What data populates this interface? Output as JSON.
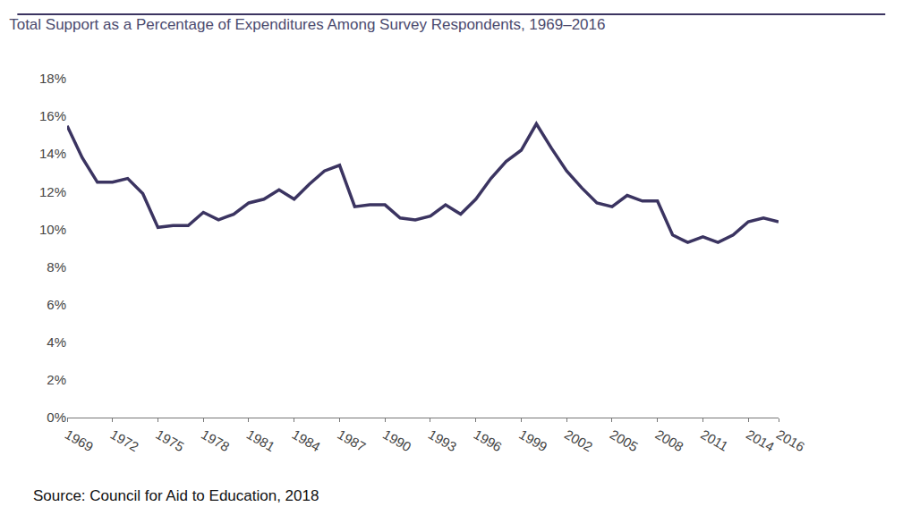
{
  "chart_data": {
    "type": "line",
    "title": "Total Support as a Percentage of Expenditures Among Survey Respondents, 1969–2016",
    "annotations": [
      {
        "text": "Source: Council for Aid to Education, 2018"
      }
    ],
    "x": [
      1969,
      1970,
      1971,
      1972,
      1973,
      1974,
      1975,
      1976,
      1977,
      1978,
      1979,
      1980,
      1981,
      1982,
      1983,
      1984,
      1985,
      1986,
      1987,
      1988,
      1989,
      1990,
      1991,
      1992,
      1993,
      1994,
      1995,
      1996,
      1997,
      1998,
      1999,
      2000,
      2001,
      2002,
      2003,
      2004,
      2005,
      2006,
      2007,
      2008,
      2009,
      2010,
      2011,
      2012,
      2013,
      2014,
      2015,
      2016
    ],
    "values": [
      15.5,
      13.8,
      12.5,
      12.5,
      12.7,
      11.9,
      10.1,
      10.2,
      10.2,
      10.9,
      10.5,
      10.8,
      11.4,
      11.6,
      12.1,
      11.6,
      12.4,
      13.1,
      13.4,
      11.2,
      11.3,
      11.3,
      10.6,
      10.5,
      10.7,
      11.3,
      10.8,
      11.6,
      12.7,
      13.6,
      14.2,
      15.6,
      14.3,
      13.1,
      12.2,
      11.4,
      11.2,
      11.8,
      11.5,
      11.5,
      9.7,
      9.3,
      9.6,
      9.3,
      9.7,
      10.4,
      10.6,
      10.4
    ],
    "color": "#3b3461",
    "xlim": [
      1969,
      2016
    ],
    "xticks": [
      1969,
      1972,
      1975,
      1978,
      1981,
      1984,
      1987,
      1990,
      1993,
      1996,
      1999,
      2002,
      2005,
      2008,
      2011,
      2014,
      2016
    ],
    "ylim": [
      0,
      18
    ],
    "yticks": [
      {
        "value": 0,
        "label": "0%"
      },
      {
        "value": 2,
        "label": "2%"
      },
      {
        "value": 4,
        "label": "4%"
      },
      {
        "value": 6,
        "label": "6%"
      },
      {
        "value": 8,
        "label": "8%"
      },
      {
        "value": 10,
        "label": "10%"
      },
      {
        "value": 12,
        "label": "12%"
      },
      {
        "value": 14,
        "label": "14%"
      },
      {
        "value": 16,
        "label": "16%"
      },
      {
        "value": 18,
        "label": "18%"
      }
    ],
    "grid": false
  }
}
